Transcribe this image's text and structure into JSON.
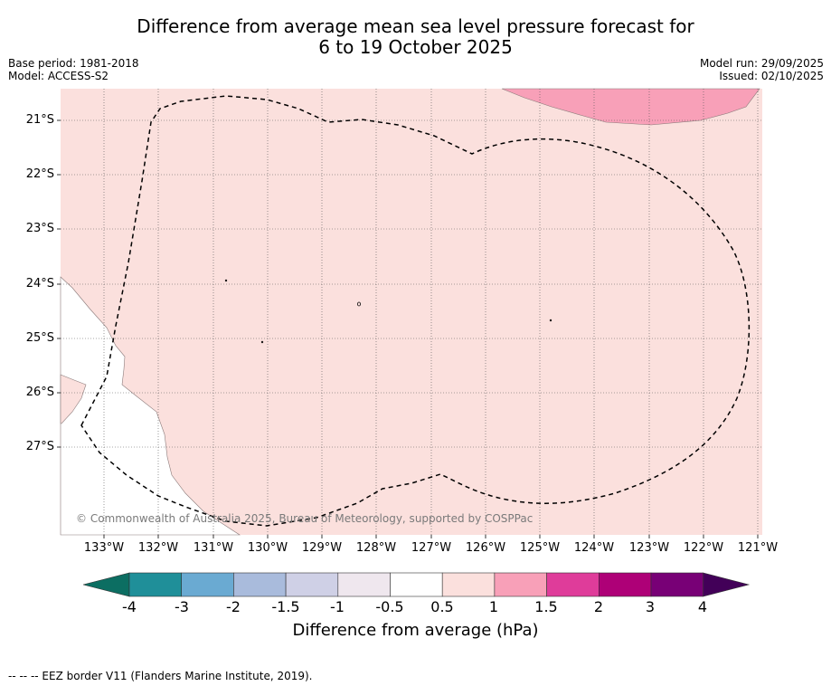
{
  "title": {
    "line1": "Difference from average mean sea level pressure forecast for",
    "line2": "6 to 19 October 2025"
  },
  "meta": {
    "base_period": "Base period: 1981-2018",
    "model": "Model: ACCESS-S2",
    "model_run": "Model run: 29/09/2025",
    "issued": "Issued: 02/10/2025"
  },
  "map": {
    "lat_ticks": [
      "21°S",
      "22°S",
      "23°S",
      "24°S",
      "25°S",
      "26°S",
      "27°S"
    ],
    "lon_ticks": [
      "133°W",
      "132°W",
      "131°W",
      "130°W",
      "129°W",
      "128°W",
      "127°W",
      "126°W",
      "125°W",
      "124°W",
      "123°W",
      "122°W",
      "121°W"
    ],
    "copyright": "© Commonwealth of Australia 2025, Bureau of Meteorology, supported by COSPPac",
    "colors": {
      "anomaly_0_5_to_1": "#fbe0dd",
      "anomaly_1_to_1_5": "#f8a0b8",
      "eez_border": "#000000"
    }
  },
  "colorbar": {
    "tick_labels": [
      "-4",
      "-3",
      "-2",
      "-1.5",
      "-1",
      "-0.5",
      "0.5",
      "1",
      "1.5",
      "2",
      "3",
      "4"
    ],
    "colors": [
      "#0c6e62",
      "#1f8f99",
      "#6aaad2",
      "#a9bbdc",
      "#cfd0e6",
      "#efe7ee",
      "#ffffff",
      "#fbe0dd",
      "#f8a0b8",
      "#df3c9a",
      "#ae0077",
      "#780076",
      "#420058"
    ],
    "label": "Difference from average (hPa)"
  },
  "footer": {
    "legend": "-- -- -- EEZ border V11 (Flanders Marine Institute, 2019)."
  }
}
